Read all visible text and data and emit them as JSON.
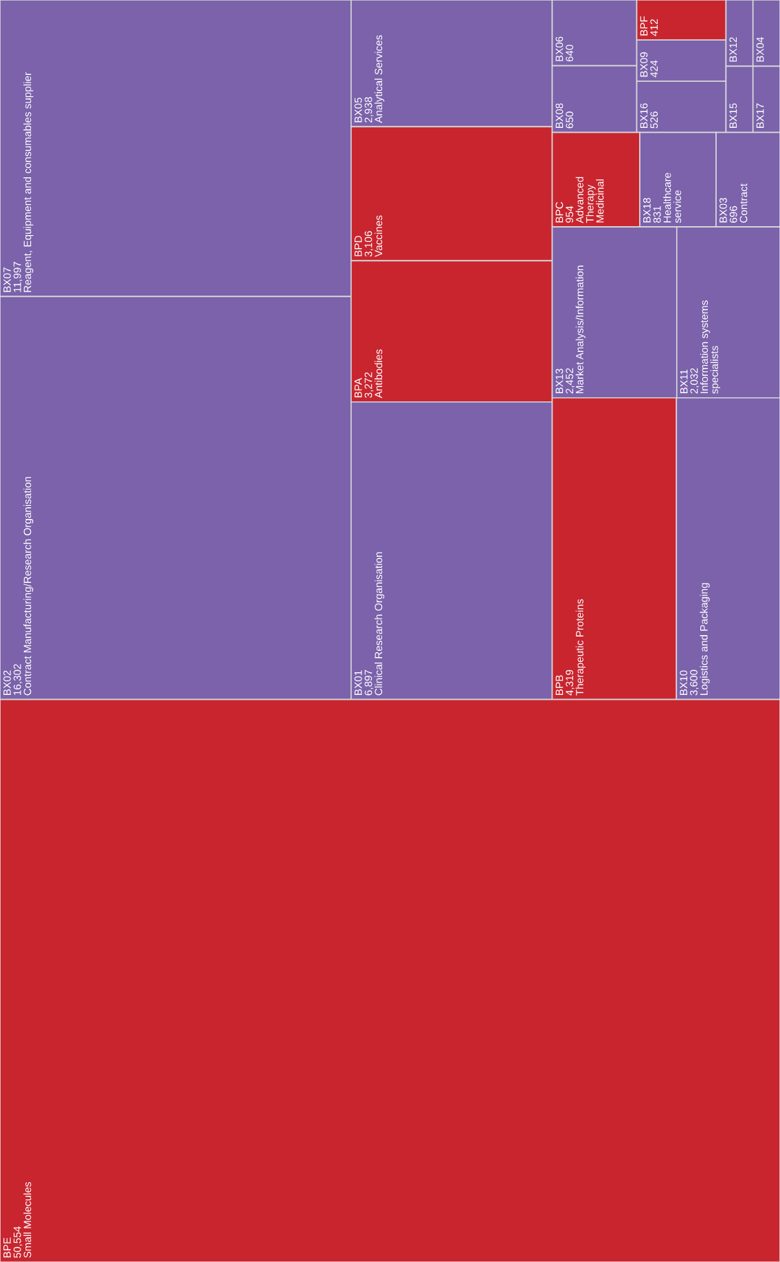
{
  "chart_data": {
    "type": "other",
    "categories": [
      "BPE",
      "BX02",
      "BX07",
      "BX01",
      "BPA",
      "BPD",
      "BX05",
      "BPB",
      "BX10",
      "BX13",
      "BX11",
      "BPC",
      "BX18",
      "BX03",
      "BX06",
      "BX08",
      "BPF",
      "BX09",
      "BX16",
      "BX12",
      "BX15",
      "BX04",
      "BX17"
    ],
    "values": [
      50554,
      16302,
      11997,
      6897,
      3272,
      3106,
      2938,
      4319,
      3600,
      2452,
      2032,
      954,
      831,
      696,
      640,
      650,
      412,
      424,
      526,
      null,
      null,
      null,
      null
    ],
    "value_labels": [
      "50,554",
      "16,302",
      "11,997",
      "6,897",
      "3,272",
      "3,106",
      "2,938",
      "4,319",
      "3,600",
      "2,452",
      "2,032",
      "954",
      "831",
      "696",
      "640",
      "650",
      "412",
      "424",
      "526",
      null,
      null,
      null,
      null
    ],
    "colors": [
      "#c8252f",
      "#7b62ab",
      "#7b62ab",
      "#7b62ab",
      "#c8252f",
      "#c8252f",
      "#7b62ab",
      "#c8252f",
      "#7b62ab",
      "#7b62ab",
      "#7b62ab",
      "#c8252f",
      "#7b62ab",
      "#7b62ab",
      "#7b62ab",
      "#7b62ab",
      "#c8252f",
      "#7b62ab",
      "#7b62ab",
      "#7b62ab",
      "#7b62ab",
      "#7b62ab",
      "#7b62ab"
    ],
    "annotations": [
      {
        "text": "Small Molecules",
        "x": "BPE"
      },
      {
        "text": "Contract Manufacturing/Research Organisation",
        "x": "BX02"
      },
      {
        "text": "Reagent, Equipment and consumables supplier",
        "x": "BX07"
      },
      {
        "text": "Clinical Research Organisation",
        "x": "BX01"
      },
      {
        "text": "Antibodies",
        "x": "BPA"
      },
      {
        "text": "Vaccines",
        "x": "BPD"
      },
      {
        "text": "Analytical Services",
        "x": "BX05"
      },
      {
        "text": "Therapeutic Proteins",
        "x": "BPB"
      },
      {
        "text": "Logistics and Packaging",
        "x": "BX10"
      },
      {
        "text": "Market Analysis/Information",
        "x": "BX13"
      },
      {
        "text": "Information systems\nspecialists",
        "x": "BX11"
      },
      {
        "text": "Advanced\nTherapy\nMedicinal",
        "x": "BPC"
      },
      {
        "text": "Healthcare\nservice",
        "x": "BX18"
      },
      {
        "text": "Contract",
        "x": "BX03"
      }
    ]
  }
}
